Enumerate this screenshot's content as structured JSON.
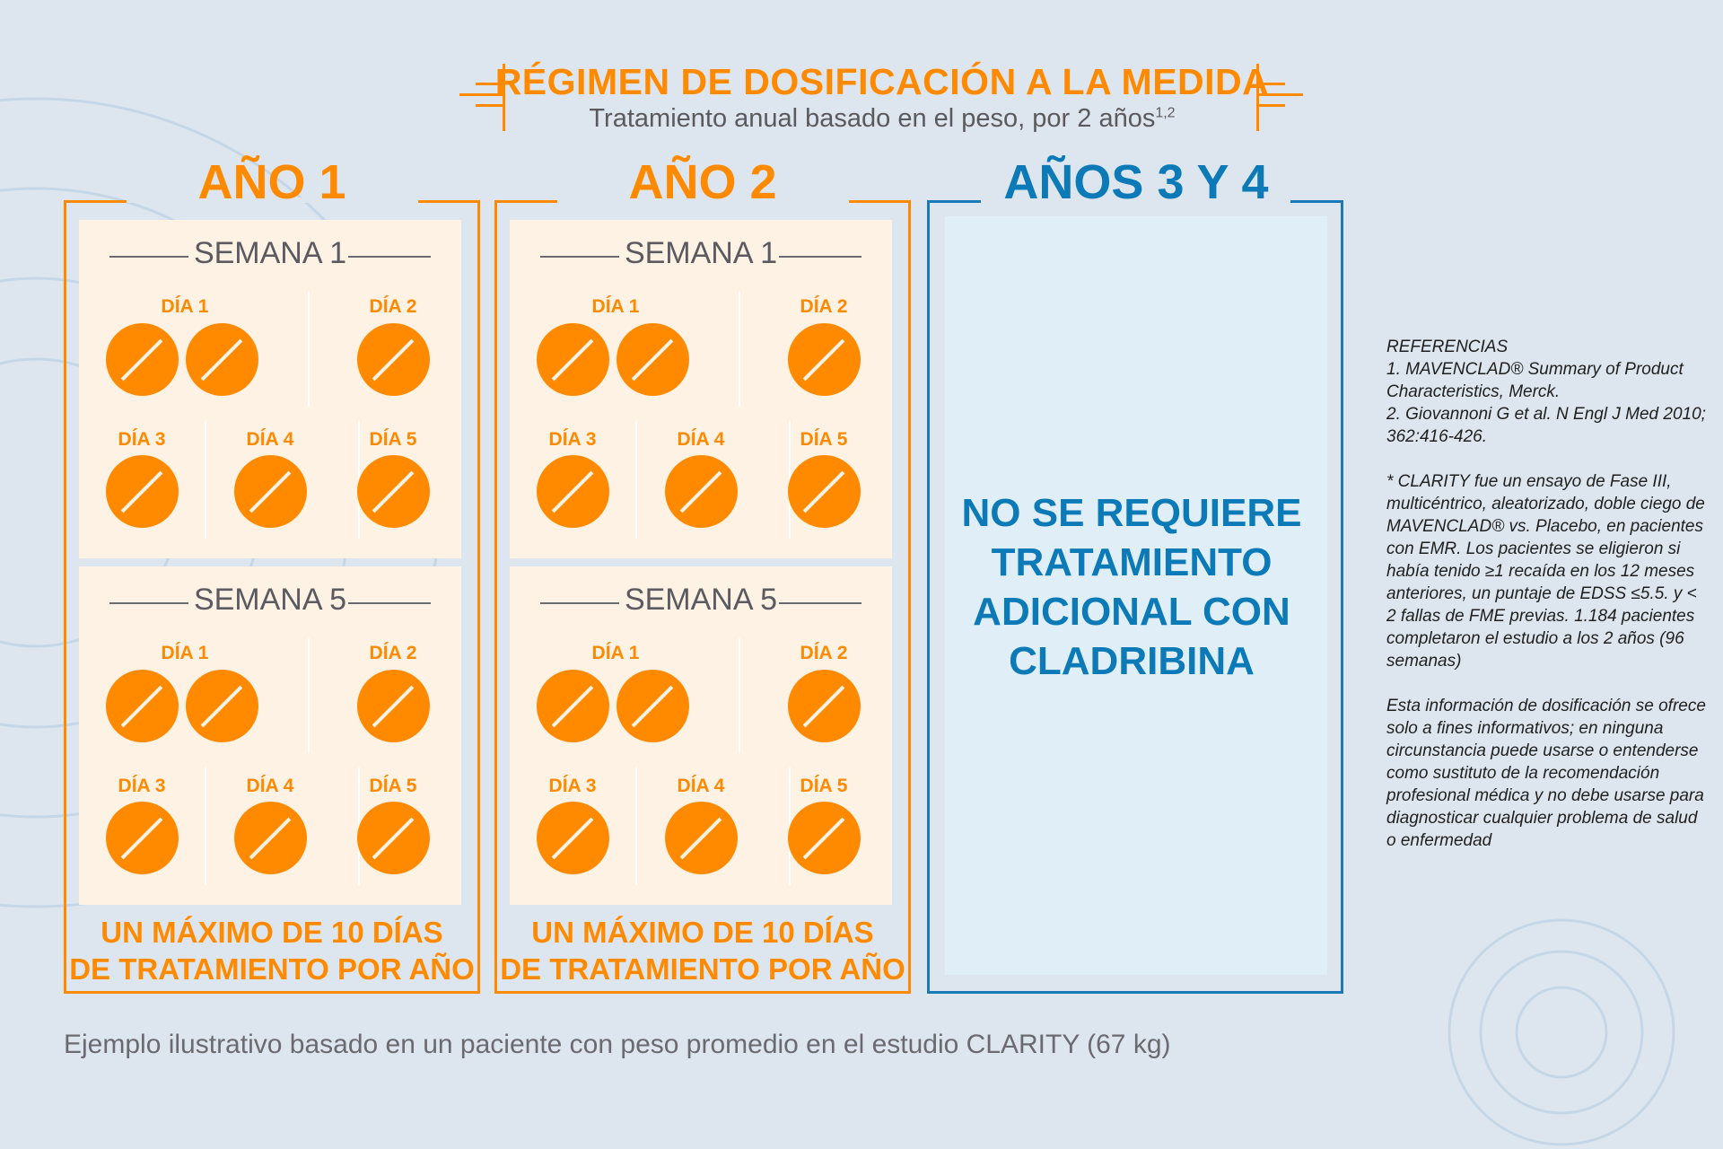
{
  "header": {
    "title": "RÉGIMEN DE DOSIFICACIÓN A LA MEDIDA",
    "subtitle": "Tratamiento anual basado en el peso, por 2 años",
    "subtitle_sup": "1,2"
  },
  "years": [
    {
      "label": "AÑO 1",
      "weeks": [
        {
          "label": "SEMANA 1",
          "days": [
            {
              "label": "DÍA 1",
              "pills": 2
            },
            {
              "label": "DÍA 2",
              "pills": 1
            },
            {
              "label": "DÍA 3",
              "pills": 1
            },
            {
              "label": "DÍA 4",
              "pills": 1
            },
            {
              "label": "DÍA 5",
              "pills": 1
            }
          ]
        },
        {
          "label": "SEMANA 5",
          "days": [
            {
              "label": "DÍA 1",
              "pills": 2
            },
            {
              "label": "DÍA 2",
              "pills": 1
            },
            {
              "label": "DÍA 3",
              "pills": 1
            },
            {
              "label": "DÍA 4",
              "pills": 1
            },
            {
              "label": "DÍA 5",
              "pills": 1
            }
          ]
        }
      ],
      "max_line1": "UN MÁXIMO DE 10 DÍAS",
      "max_line2": "DE TRATAMIENTO POR AÑO"
    },
    {
      "label": "AÑO 2",
      "weeks": [
        {
          "label": "SEMANA 1",
          "days": [
            {
              "label": "DÍA 1",
              "pills": 2
            },
            {
              "label": "DÍA 2",
              "pills": 1
            },
            {
              "label": "DÍA 3",
              "pills": 1
            },
            {
              "label": "DÍA 4",
              "pills": 1
            },
            {
              "label": "DÍA 5",
              "pills": 1
            }
          ]
        },
        {
          "label": "SEMANA 5",
          "days": [
            {
              "label": "DÍA 1",
              "pills": 2
            },
            {
              "label": "DÍA 2",
              "pills": 1
            },
            {
              "label": "DÍA 3",
              "pills": 1
            },
            {
              "label": "DÍA 4",
              "pills": 1
            },
            {
              "label": "DÍA 5",
              "pills": 1
            }
          ]
        }
      ],
      "max_line1": "UN MÁXIMO DE 10 DÍAS",
      "max_line2": "DE TRATAMIENTO POR AÑO"
    }
  ],
  "years_3_4": {
    "label": "AÑOS 3 Y 4",
    "lines": [
      "NO SE REQUIERE",
      "TRATAMIENTO",
      "ADICIONAL CON",
      "CLADRIBINA"
    ]
  },
  "caption": "Ejemplo ilustrativo basado en un paciente con peso promedio en el estudio CLARITY (67 kg)",
  "references": {
    "text": "REFERENCIAS\n1. MAVENCLAD® Summary of Product Characteristics, Merck.\n2. Giovannoni G et al. N Engl J Med 2010; 362:416-426.\n\n* CLARITY fue un ensayo de Fase III, multicéntrico, aleatorizado, doble ciego de MAVENCLAD® vs. Placebo, en pacientes con EMR. Los pacientes se eligieron si había tenido ≥1 recaída en los 12 meses anteriores, un puntaje de EDSS ≤5.5. y < 2 fallas de FME previas. 1.184 pacientes completaron el estudio a los 2 años (96 semanas)\n\nEsta información de dosificación se ofrece solo a fines informativos; en ninguna circunstancia puede usarse o entenderse como sustituto de la recomendación profesional médica y no debe usarse para diagnosticar cualquier problema de salud o enfermedad"
  },
  "colors": {
    "orange": "#ff8a00",
    "blue": "#0d7ab8",
    "background": "#dde6ee",
    "panel": "#fdf2e4"
  },
  "icons": {
    "pill": "pill-tablet-icon"
  }
}
